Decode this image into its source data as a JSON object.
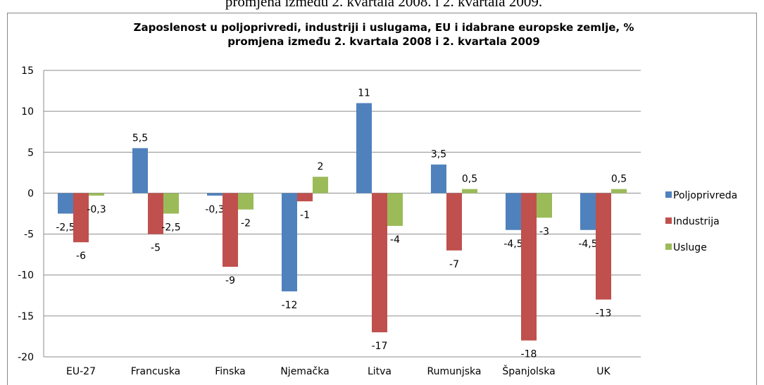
{
  "caption": "promjena između 2. kvartala 2008. i 2. kvartala 2009.",
  "chart_data": {
    "type": "bar",
    "title": [
      "Zaposlenost u poljoprivredi, industriji i uslugama, EU i idabrane europske zemlje, %",
      "promjena između 2. kvartala 2008 i 2. kvartala 2009"
    ],
    "categories": [
      "EU-27",
      "Francuska",
      "Finska",
      "Njemačka",
      "Litva",
      "Rumunjska",
      "Španjolska",
      "UK"
    ],
    "series": [
      {
        "name": "Poljoprivreda",
        "color": "#4f81bd",
        "values": [
          -2.5,
          5.5,
          -0.3,
          -12,
          11,
          3.5,
          -4.5,
          -4.5
        ],
        "value_labels": [
          "-2,5",
          "5,5",
          "-0,3",
          "-12",
          "11",
          "3,5",
          "-4,5",
          "-4,5"
        ]
      },
      {
        "name": "Industrija",
        "color": "#c0504d",
        "values": [
          -6,
          -5,
          -9,
          -1,
          -17,
          -7,
          -18,
          -13
        ],
        "value_labels": [
          "-6",
          "-5",
          "-9",
          "-1",
          "-17",
          "-7",
          "-18",
          "-13"
        ]
      },
      {
        "name": "Usluge",
        "color": "#9bbb59",
        "values": [
          -0.3,
          -2.5,
          -2,
          2,
          -4,
          0.5,
          -3,
          0.5
        ],
        "value_labels": [
          "-0,3",
          "-2,5",
          "-2",
          "2",
          "-4",
          "0,5",
          "-3",
          "0,5"
        ]
      }
    ],
    "ylim": [
      -20,
      15
    ],
    "yticks": [
      -20,
      -15,
      -10,
      -5,
      0,
      5,
      10,
      15
    ],
    "grid": true,
    "legend": "right"
  }
}
